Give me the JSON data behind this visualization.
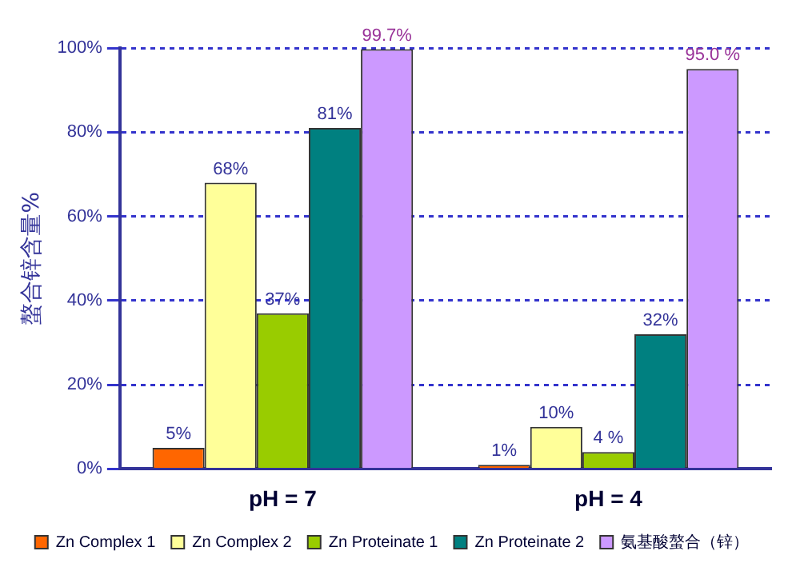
{
  "chart_data": {
    "type": "bar",
    "ylabel": "螯合锌含量%",
    "categories": [
      "pH = 7",
      "pH = 4"
    ],
    "series": [
      {
        "name": "Zn Complex 1",
        "color": "#ff6600",
        "values": [
          5,
          1
        ],
        "value_labels": [
          "5%",
          "1%"
        ]
      },
      {
        "name": "Zn Complex 2",
        "color": "#ffff99",
        "values": [
          68,
          10
        ],
        "value_labels": [
          "68%",
          "10%"
        ]
      },
      {
        "name": "Zn Proteinate 1",
        "color": "#99cc00",
        "values": [
          37,
          4
        ],
        "value_labels": [
          "37%",
          "4 %"
        ]
      },
      {
        "name": "Zn Proteinate 2",
        "color": "#008080",
        "values": [
          81,
          32
        ],
        "value_labels": [
          "81%",
          "32%"
        ]
      },
      {
        "name": "氨基酸螯合（锌）",
        "color": "#cc99ff",
        "values": [
          99.7,
          95.0
        ],
        "value_labels": [
          "99.7%",
          "95.0 %"
        ]
      }
    ],
    "ylim": [
      0,
      100
    ],
    "yticks": [
      {
        "value": 0,
        "label": "0%"
      },
      {
        "value": 20,
        "label": "20%"
      },
      {
        "value": 40,
        "label": "40%"
      },
      {
        "value": 60,
        "label": "60%"
      },
      {
        "value": 80,
        "label": "80%"
      },
      {
        "value": 100,
        "label": "100%"
      }
    ],
    "grid": "y",
    "legend": "bottom"
  }
}
